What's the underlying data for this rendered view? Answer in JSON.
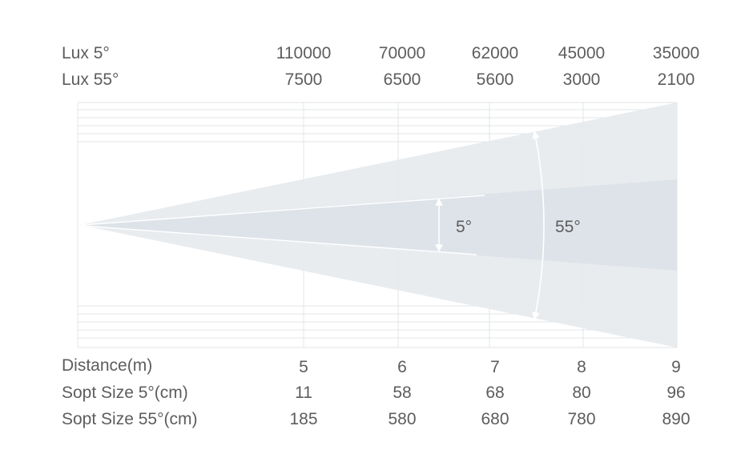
{
  "top_table": {
    "rows": [
      {
        "label": "Lux 5°",
        "values": [
          "110000",
          "70000",
          "62000",
          "45000",
          "35000"
        ]
      },
      {
        "label": "Lux 55°",
        "values": [
          "7500",
          "6500",
          "5600",
          "3000",
          "2100"
        ]
      }
    ]
  },
  "bottom_table": {
    "rows": [
      {
        "label": "Distance(m)",
        "values": [
          "5",
          "6",
          "7",
          "8",
          "9"
        ]
      },
      {
        "label": "Sopt Size 5°(cm)",
        "values": [
          "11",
          "58",
          "68",
          "80",
          "96"
        ]
      },
      {
        "label": "Sopt Size 55°(cm)",
        "values": [
          "185",
          "580",
          "680",
          "780",
          "890"
        ]
      }
    ]
  },
  "beam": {
    "narrow_angle_label": "5°",
    "wide_angle_label": "55°"
  },
  "colors": {
    "wide_beam": "#e5e8ed",
    "narrow_beam": "#dde2e8",
    "grid": "#e2e4e8",
    "text": "#5d5d5d",
    "arrow": "#ffffff"
  }
}
